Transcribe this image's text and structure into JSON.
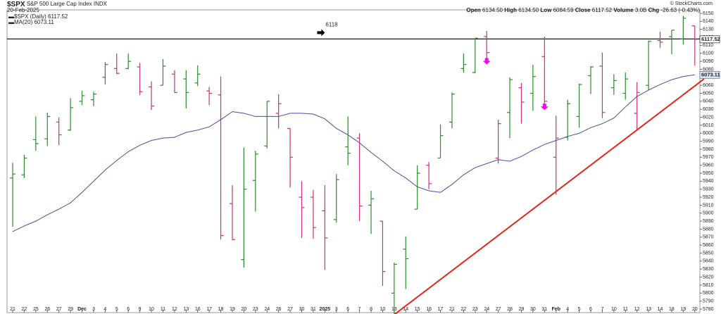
{
  "chart_data": {
    "type": "ohlc",
    "title": "$SPX",
    "subtitle": "S&P 500 Large Cap Index",
    "exchange": "INDX",
    "date": "20-Feb-2025",
    "credit": "© StockCharts.com",
    "stats": [
      [
        "Open",
        "6134.50"
      ],
      [
        "High",
        "6134.50"
      ],
      [
        "Low",
        "6084.59"
      ],
      [
        "Close",
        "6117.52"
      ],
      [
        "Volume",
        "3.0B"
      ],
      [
        "Chg",
        "-26.63 (-0.43%)"
      ]
    ],
    "categories": [
      "21",
      "22",
      "25",
      "26",
      "27",
      "29",
      "Dec",
      "3",
      "4",
      "5",
      "6",
      "9",
      "10",
      "11",
      "12",
      "13",
      "16",
      "17",
      "18",
      "19",
      "20",
      "23",
      "24",
      "26",
      "27",
      "30",
      "31",
      "2025",
      "3",
      "6",
      "7",
      "8",
      "10",
      "13",
      "14",
      "15",
      "16",
      "17",
      "21",
      "22",
      "23",
      "24",
      "27",
      "28",
      "29",
      "30",
      "31",
      "Feb",
      "4",
      "5",
      "6",
      "7",
      "10",
      "11",
      "12",
      "13",
      "14",
      "18",
      "19",
      "20"
    ],
    "bold_categories": [
      "Dec",
      "2025",
      "Feb"
    ],
    "up_color": "#2e8b2e",
    "down_color": "#c8327a",
    "series": [
      {
        "name": "$SPX (Daily)",
        "open": [
          5944,
          5948,
          5992,
          5993,
          6014,
          6004,
          6040,
          6042,
          6070,
          6081,
          6081,
          6083,
          6058,
          6060,
          6074,
          6068,
          6063,
          6053,
          6048,
          5912,
          5842,
          5941,
          5984,
          6025,
          6006,
          5920,
          5920,
          5903,
          5892,
          5983,
          5994,
          5910,
          5890,
          5800,
          5855,
          5905,
          5960,
          5969,
          6014,
          6081,
          6076,
          6121,
          5969,
          6026,
          6057,
          6050,
          6096,
          5970,
          5995,
          6021,
          6072,
          6084,
          6057,
          6050,
          6025,
          6060,
          6116,
          6121,
          6118,
          6134.5
        ],
        "high": [
          5963,
          5973,
          6021,
          6026,
          6020,
          6044,
          6053,
          6052,
          6089,
          6100,
          6100,
          6088,
          6065,
          6093,
          6079,
          6079,
          6085,
          6058,
          6071,
          5935,
          5982,
          5978,
          6040,
          6049,
          6006,
          5940,
          5929,
          5935,
          5949,
          6021,
          6000,
          5928,
          5890,
          5838,
          5871,
          5960,
          5964,
          6011,
          6051,
          6100,
          6119,
          6128,
          6017,
          6070,
          6063,
          6086,
          6121,
          6022,
          6042,
          6062,
          6084,
          6101,
          6074,
          6076,
          6064,
          6116,
          6127,
          6129,
          6147,
          6134.5
        ],
        "low": [
          5883,
          5944,
          5978,
          5984,
          5985,
          6003,
          6035,
          6034,
          6061,
          6074,
          6080,
          6048,
          6029,
          6060,
          6051,
          6031,
          6059,
          6035,
          5867,
          5866,
          5832,
          5902,
          5981,
          6006,
          5932,
          5869,
          5868,
          5829,
          5888,
          5960,
          5890,
          5874,
          5809,
          5773,
          5805,
          5905,
          5930,
          5969,
          6006,
          6076,
          6075,
          6088,
          5962,
          5994,
          6012,
          6028,
          6030,
          5923,
          5991,
          6007,
          6049,
          6019,
          6048,
          6042,
          6003,
          6054,
          6107,
          6099,
          6111,
          6084.59
        ],
        "close": [
          5949,
          5969,
          5987,
          6021,
          5998,
          6032,
          6047,
          6049,
          6086,
          6075,
          6090,
          6052,
          6034,
          6084,
          6051,
          6051,
          6074,
          6050,
          5872,
          5867,
          5930,
          5974,
          6040,
          6037,
          5970,
          5907,
          5882,
          5869,
          5942,
          5975,
          5909,
          5918,
          5827,
          5836,
          5843,
          5950,
          5937,
          5997,
          6049,
          6086,
          6119,
          6101,
          6012,
          6067,
          6039,
          6071,
          6040,
          5994,
          6037,
          6061,
          6083,
          6026,
          6066,
          6068,
          6051,
          6115,
          6114,
          6129,
          6144,
          6117.52
        ]
      },
      {
        "name": "MA(20)",
        "color": "#4b4ba0",
        "values": [
          5877,
          5884,
          5890,
          5898,
          5905,
          5913,
          5926,
          5940,
          5954,
          5966,
          5977,
          5985,
          5991,
          5994,
          5995,
          6001,
          6004,
          6008,
          6017,
          6027,
          6025,
          6021,
          6021,
          6021,
          6025,
          6025,
          6024,
          6018,
          6006,
          5998,
          5988,
          5976,
          5965,
          5953,
          5944,
          5933,
          5928,
          5926,
          5936,
          5948,
          5957,
          5962,
          5967,
          5965,
          5971,
          5979,
          5986,
          5991,
          5996,
          6000,
          6007,
          6012,
          6019,
          6033,
          6046,
          6054,
          6061,
          6067,
          6071,
          6073.11
        ]
      }
    ],
    "hline": {
      "value": 6118,
      "color": "#000000",
      "arrow_x": 26.7
    },
    "trendline": {
      "color": "#e8231e",
      "start": {
        "x": 33,
        "value": 5773
      },
      "end": {
        "x": 59.8,
        "value": 6068
      }
    },
    "down_arrows": {
      "color": "#ff00ff",
      "points": [
        {
          "x": 41,
          "value": 6087
        },
        {
          "x": 46,
          "value": 6030
        }
      ]
    },
    "ylim": [
      5780,
      6150
    ],
    "yticks": [
      5780,
      5790,
      5800,
      5810,
      5820,
      5830,
      5840,
      5850,
      5860,
      5870,
      5880,
      5890,
      5900,
      5910,
      5920,
      5930,
      5940,
      5950,
      5960,
      5970,
      5980,
      5990,
      6000,
      6010,
      6020,
      6030,
      6040,
      6050,
      6060,
      6070,
      6080,
      6090,
      6100,
      6110,
      6120,
      6130,
      6140,
      6150
    ]
  }
}
